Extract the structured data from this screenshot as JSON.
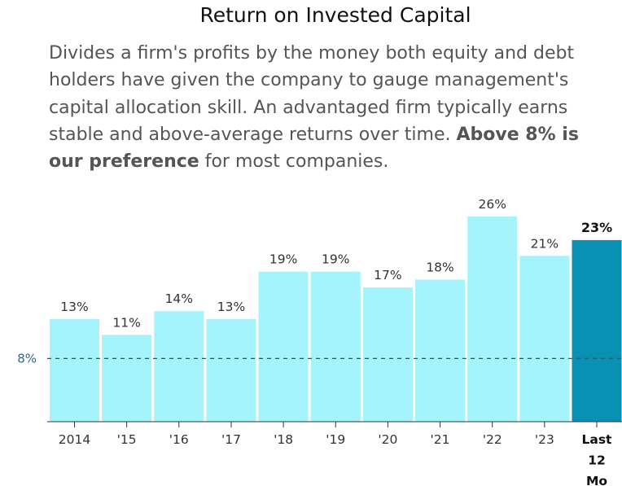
{
  "title": "Return on Invested Capital",
  "description": {
    "part1": "Divides a firm's profits by the money both equity and debt holders have given the company to gauge management's capital allocation skill. An advantaged firm typically earns stable and above-average returns over time. ",
    "bold": "Above 8% is our preference",
    "part2": " for most companies."
  },
  "colors": {
    "bar": "#a5f3fc",
    "bar_highlight": "#0891b2",
    "reference_line": "#1f5b66"
  },
  "chart_data": {
    "type": "bar",
    "categories": [
      "2014",
      "'15",
      "'16",
      "'17",
      "'18",
      "'19",
      "'20",
      "'21",
      "'22",
      "'23",
      "Last 12 Mo"
    ],
    "values": [
      13,
      11,
      14,
      13,
      19,
      19,
      17,
      18,
      26,
      21,
      23
    ],
    "value_labels": [
      "13%",
      "11%",
      "14%",
      "13%",
      "19%",
      "19%",
      "17%",
      "18%",
      "26%",
      "21%",
      "23%"
    ],
    "highlight_index": 10,
    "reference": {
      "value": 8,
      "label": "8%"
    },
    "title": "Return on Invested Capital",
    "xlabel": "",
    "ylabel": "",
    "ylim": [
      0,
      26
    ],
    "grid": false
  }
}
